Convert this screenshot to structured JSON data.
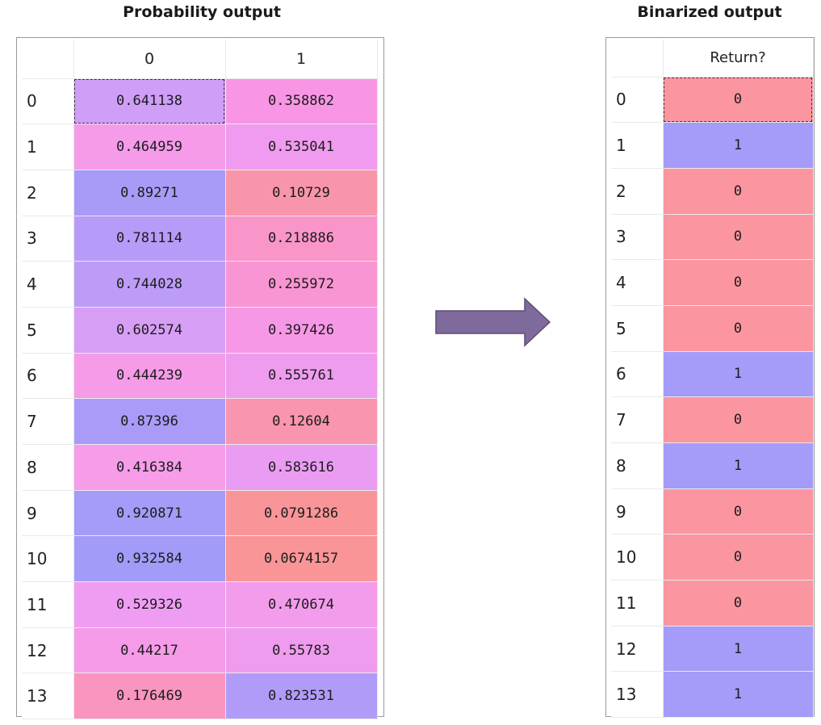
{
  "titles": {
    "probability": "Probability output",
    "binarized": "Binarized output"
  },
  "probability_table": {
    "columns": [
      "0",
      "1"
    ],
    "rows": [
      {
        "index": "0",
        "p0": "0.641138",
        "p1": "0.358862",
        "c0": "#cf9ef7",
        "c1": "#f896e5"
      },
      {
        "index": "1",
        "p0": "0.464959",
        "p1": "0.535041",
        "c0": "#f59bea",
        "c1": "#f09bef"
      },
      {
        "index": "2",
        "p0": "0.89271",
        "p1": "0.10729",
        "c0": "#a89bf8",
        "c1": "#f995aa"
      },
      {
        "index": "3",
        "p0": "0.781114",
        "p1": "0.218886",
        "c0": "#b69cf8",
        "c1": "#f995c9"
      },
      {
        "index": "4",
        "p0": "0.744028",
        "p1": "0.255972",
        "c0": "#bd9cf8",
        "c1": "#f995d2"
      },
      {
        "index": "5",
        "p0": "0.602574",
        "p1": "0.397426",
        "c0": "#d79ef6",
        "c1": "#f698e6"
      },
      {
        "index": "6",
        "p0": "0.444239",
        "p1": "0.555761",
        "c0": "#f59be8",
        "c1": "#ef9cef"
      },
      {
        "index": "7",
        "p0": "0.87396",
        "p1": "0.12604",
        "c0": "#ab9bf8",
        "c1": "#f995ae"
      },
      {
        "index": "8",
        "p0": "0.416384",
        "p1": "0.583616",
        "c0": "#f69ce9",
        "c1": "#ea9cf3"
      },
      {
        "index": "9",
        "p0": "0.920871",
        "p1": "0.0791286",
        "c0": "#a59bf8",
        "c1": "#f99599"
      },
      {
        "index": "10",
        "p0": "0.932584",
        "p1": "0.0674157",
        "c0": "#a39bf8",
        "c1": "#f99597"
      },
      {
        "index": "11",
        "p0": "0.529326",
        "p1": "0.470674",
        "c0": "#ef9df2",
        "c1": "#f39ceb"
      },
      {
        "index": "12",
        "p0": "0.44217",
        "p1": "0.55783",
        "c0": "#f59be8",
        "c1": "#ef9cef"
      },
      {
        "index": "13",
        "p0": "0.176469",
        "p1": "0.823531",
        "c0": "#f995bf",
        "c1": "#b09cf8"
      }
    ]
  },
  "binarized_table": {
    "column": "Return?",
    "rows": [
      {
        "index": "0",
        "value": "0"
      },
      {
        "index": "1",
        "value": "1"
      },
      {
        "index": "2",
        "value": "0"
      },
      {
        "index": "3",
        "value": "0"
      },
      {
        "index": "4",
        "value": "0"
      },
      {
        "index": "5",
        "value": "0"
      },
      {
        "index": "6",
        "value": "1"
      },
      {
        "index": "7",
        "value": "0"
      },
      {
        "index": "8",
        "value": "1"
      },
      {
        "index": "9",
        "value": "0"
      },
      {
        "index": "10",
        "value": "0"
      },
      {
        "index": "11",
        "value": "0"
      },
      {
        "index": "12",
        "value": "1"
      },
      {
        "index": "13",
        "value": "1"
      }
    ],
    "colors": {
      "zero": "#fb95a0",
      "one": "#a59bf8"
    }
  },
  "icons": {
    "arrow": "right-arrow-icon"
  },
  "colors": {
    "arrow_fill": "#7f6a9c",
    "arrow_stroke": "#5e4d78"
  }
}
